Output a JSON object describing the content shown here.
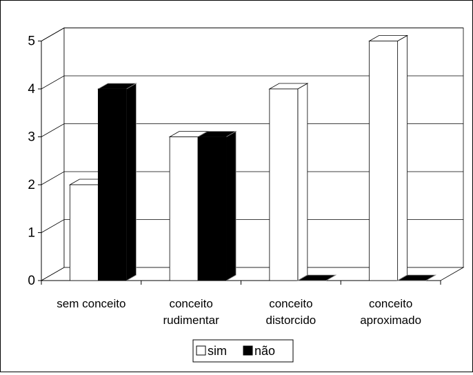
{
  "chart_data": {
    "type": "bar",
    "style": "3d-clustered-column",
    "categories": [
      "sem conceito",
      "conceito rudimentar",
      "conceito distorcido",
      "conceito aproximado"
    ],
    "category_lines": [
      [
        "sem conceito"
      ],
      [
        "conceito",
        "rudimentar"
      ],
      [
        "conceito",
        "distorcido"
      ],
      [
        "conceito",
        "aproximado"
      ]
    ],
    "series": [
      {
        "name": "sim",
        "values": [
          2,
          3,
          4,
          5
        ],
        "color": "#ffffff"
      },
      {
        "name": "não",
        "values": [
          4,
          3,
          0,
          0
        ],
        "color": "#000000"
      }
    ],
    "ylim": [
      0,
      5
    ],
    "yticks": [
      "0",
      "1",
      "2",
      "3",
      "4",
      "5"
    ],
    "grid": true,
    "legend": "bottom",
    "title": "",
    "xlabel": "",
    "ylabel": ""
  }
}
